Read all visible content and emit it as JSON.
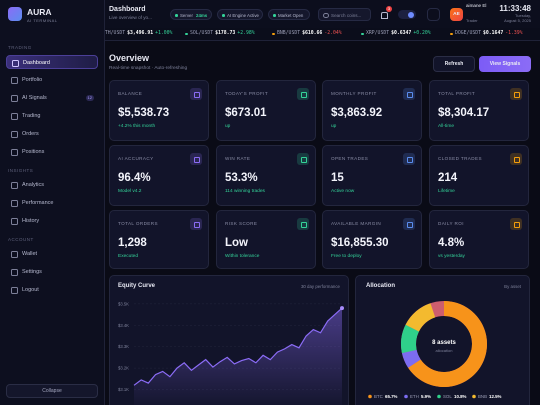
{
  "sidebar": {
    "brand": "AURA",
    "tagline": "AI TERMINAL",
    "sections": [
      {
        "title": "TRADING",
        "items": [
          {
            "label": "Dashboard"
          },
          {
            "label": "Portfolio"
          },
          {
            "label": "AI Signals",
            "badge": "12"
          },
          {
            "label": "Trading"
          },
          {
            "label": "Orders"
          },
          {
            "label": "Positions"
          }
        ]
      },
      {
        "title": "INSIGHTS",
        "items": [
          {
            "label": "Analytics"
          },
          {
            "label": "Performance"
          },
          {
            "label": "History"
          }
        ]
      },
      {
        "title": "ACCOUNT",
        "items": [
          {
            "label": "Wallet"
          },
          {
            "label": "Settings"
          },
          {
            "label": "Logout"
          }
        ]
      }
    ],
    "collapse": "Collapse"
  },
  "header": {
    "title": "Dashboard",
    "subtitle": "Live overview of yo...",
    "status": [
      {
        "label": "Server",
        "value": "24ms"
      },
      {
        "label": "AI Engine Active"
      },
      {
        "label": "Market Open"
      }
    ],
    "search": "Search coins...",
    "notifications": "3",
    "avatar": "AE",
    "user": "aimane El",
    "role": "Trader",
    "time": "11:33:48",
    "day": "Tuesday,",
    "date": "August 5, 2025"
  },
  "ticker": [
    {
      "pair": "ETH/USDT",
      "price": "$3,496.91",
      "change": "+1.00%"
    },
    {
      "pair": "SOL/USDT",
      "price": "$178.73",
      "change": "+2.98%"
    },
    {
      "pair": "BNB/USDT",
      "price": "$610.66",
      "change": "-2.04%"
    },
    {
      "pair": "XRP/USDT",
      "price": "$0.6347",
      "change": "+0.20%"
    },
    {
      "pair": "DOGE/USDT",
      "price": "$0.1647",
      "change": "-1.39%"
    }
  ],
  "overview": {
    "title": "Overview",
    "subtitle": "Real-time snapshot · Auto-refreshing",
    "buttons": [
      "Refresh",
      "View Signals"
    ]
  },
  "cards": [
    {
      "label": "BALANCE",
      "value": "$5,538.73",
      "note": "+4.2% this month"
    },
    {
      "label": "TODAY'S PROFIT",
      "value": "$673.01",
      "note": "up"
    },
    {
      "label": "MONTHLY PROFIT",
      "value": "$3,863.92",
      "note": "up"
    },
    {
      "label": "TOTAL PROFIT",
      "value": "$8,304.17",
      "note": "All-time"
    },
    {
      "label": "AI ACCURACY",
      "value": "96.4%",
      "note": "Model v4.2"
    },
    {
      "label": "WIN RATE",
      "value": "53.3%",
      "note": "114 winning trades"
    },
    {
      "label": "OPEN TRADES",
      "value": "15",
      "note": "Active now"
    },
    {
      "label": "CLOSED TRADES",
      "value": "214",
      "note": "Lifetime"
    },
    {
      "label": "TOTAL ORDERS",
      "value": "1,298",
      "note": "Executed"
    },
    {
      "label": "RISK SCORE",
      "value": "Low",
      "note": "Within tolerance"
    },
    {
      "label": "AVAILABLE MARGIN",
      "value": "$16,855.30",
      "note": "Free to deploy"
    },
    {
      "label": "DAILY ROI",
      "value": "4.8%",
      "note": "vs yesterday"
    }
  ],
  "chart_data": [
    {
      "type": "line",
      "title": "Equity Curve",
      "subtitle": "30 day performance",
      "color": "#8b6cf6",
      "values": [
        3120,
        3145,
        3130,
        3170,
        3185,
        3160,
        3200,
        3225,
        3190,
        3215,
        3240,
        3205,
        3230,
        3250,
        3220,
        3235,
        3245,
        3225,
        3260,
        3240,
        3275,
        3290,
        3310,
        3295,
        3350,
        3380,
        3365,
        3420,
        3450,
        3480
      ],
      "ylim": [
        3000,
        3560
      ],
      "yticks": [
        {
          "value": 3500,
          "label": "$3.5K"
        },
        {
          "value": 3400,
          "label": "$3.4K"
        },
        {
          "value": 3300,
          "label": "$3.3K"
        },
        {
          "value": 3200,
          "label": "$3.2K"
        },
        {
          "value": 3100,
          "label": "$3.1K"
        }
      ],
      "grid": true
    },
    {
      "type": "donut",
      "title": "Allocation",
      "subtitle": "By asset",
      "center_label": "8 assets",
      "center_sublabel": "allocation",
      "categories": [
        "BTC",
        "ETH",
        "SOL",
        "BNB"
      ],
      "values": [
        65.7,
        5.9,
        10.8,
        12.5
      ],
      "value_labels": [
        "65.7%",
        "5.9%",
        "10.8%",
        "12.5%"
      ],
      "colors": [
        "#f7931a",
        "#7c6cf0",
        "#2fd08a",
        "#f3ba2f"
      ]
    }
  ]
}
